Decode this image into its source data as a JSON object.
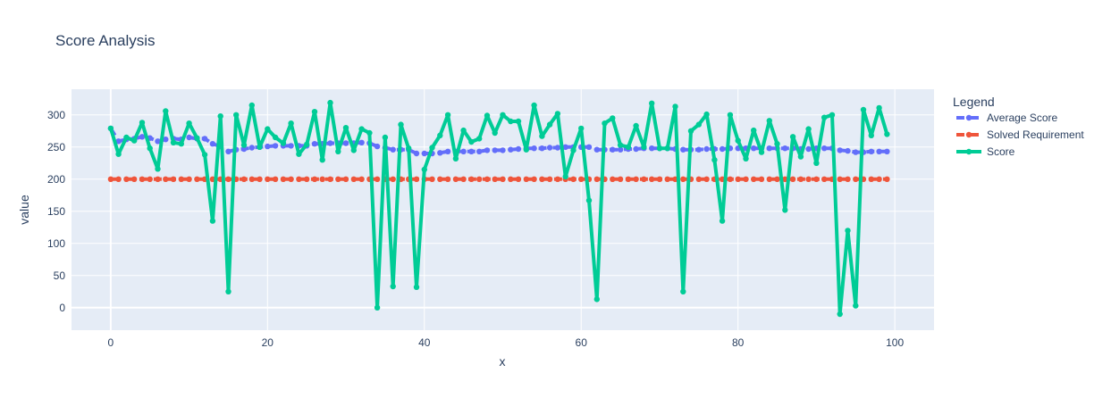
{
  "chart_data": {
    "type": "line",
    "title": "Score Analysis",
    "xlabel": "x",
    "ylabel": "value",
    "xlim": [
      -5,
      105
    ],
    "ylim": [
      -35,
      340
    ],
    "xticks": [
      0,
      20,
      40,
      60,
      80,
      100
    ],
    "yticks": [
      0,
      50,
      100,
      150,
      200,
      250,
      300
    ],
    "grid": true,
    "legend": {
      "title": "Legend",
      "position": "right"
    },
    "x": [
      0,
      1,
      2,
      3,
      4,
      5,
      6,
      7,
      8,
      9,
      10,
      11,
      12,
      13,
      14,
      15,
      16,
      17,
      18,
      19,
      20,
      21,
      22,
      23,
      24,
      25,
      26,
      27,
      28,
      29,
      30,
      31,
      32,
      33,
      34,
      35,
      36,
      37,
      38,
      39,
      40,
      41,
      42,
      43,
      44,
      45,
      46,
      47,
      48,
      49,
      50,
      51,
      52,
      53,
      54,
      55,
      56,
      57,
      58,
      59,
      60,
      61,
      62,
      63,
      64,
      65,
      66,
      67,
      68,
      69,
      70,
      71,
      72,
      73,
      74,
      75,
      76,
      77,
      78,
      79,
      80,
      81,
      82,
      83,
      84,
      85,
      86,
      87,
      88,
      89,
      90,
      91,
      92,
      93,
      94,
      95,
      96,
      97,
      98,
      99
    ],
    "series": [
      {
        "name": "Average Score",
        "color": "#636efa",
        "style": "dash",
        "values": [
          279,
          259,
          262,
          263,
          266,
          264,
          259,
          262,
          263,
          262,
          265,
          263,
          263,
          255,
          251,
          243,
          246,
          247,
          249,
          250,
          251,
          252,
          252,
          252,
          252,
          252,
          255,
          255,
          256,
          256,
          256,
          256,
          257,
          256,
          251,
          249,
          246,
          246,
          246,
          240,
          240,
          240,
          241,
          243,
          243,
          243,
          243,
          243,
          245,
          245,
          245,
          246,
          247,
          248,
          248,
          248,
          249,
          249,
          250,
          250,
          250,
          250,
          246,
          246,
          246,
          246,
          247,
          247,
          248,
          248,
          248,
          248,
          247,
          246,
          246,
          246,
          247,
          247,
          247,
          248,
          248,
          248,
          248,
          248,
          248,
          248,
          248,
          248,
          247,
          247,
          248,
          248,
          248,
          245,
          244,
          242,
          242,
          243,
          243,
          243
        ]
      },
      {
        "name": "Solved Requirement",
        "color": "#ef553b",
        "style": "dash",
        "values": [
          200,
          200,
          200,
          200,
          200,
          200,
          200,
          200,
          200,
          200,
          200,
          200,
          200,
          200,
          200,
          200,
          200,
          200,
          200,
          200,
          200,
          200,
          200,
          200,
          200,
          200,
          200,
          200,
          200,
          200,
          200,
          200,
          200,
          200,
          200,
          200,
          200,
          200,
          200,
          200,
          200,
          200,
          200,
          200,
          200,
          200,
          200,
          200,
          200,
          200,
          200,
          200,
          200,
          200,
          200,
          200,
          200,
          200,
          200,
          200,
          200,
          200,
          200,
          200,
          200,
          200,
          200,
          200,
          200,
          200,
          200,
          200,
          200,
          200,
          200,
          200,
          200,
          200,
          200,
          200,
          200,
          200,
          200,
          200,
          200,
          200,
          200,
          200,
          200,
          200,
          200,
          200,
          200,
          200,
          200,
          200,
          200,
          200,
          200,
          200
        ]
      },
      {
        "name": "Score",
        "color": "#00cc96",
        "style": "solid",
        "values": [
          279,
          239,
          265,
          260,
          288,
          248,
          216,
          306,
          257,
          255,
          287,
          264,
          238,
          135,
          298,
          25,
          300,
          253,
          315,
          250,
          278,
          265,
          256,
          287,
          239,
          254,
          305,
          230,
          319,
          243,
          280,
          245,
          278,
          272,
          0,
          265,
          33,
          285,
          248,
          32,
          215,
          249,
          268,
          300,
          232,
          276,
          258,
          263,
          299,
          272,
          300,
          290,
          290,
          246,
          315,
          267,
          285,
          302,
          204,
          245,
          279,
          167,
          13,
          287,
          295,
          253,
          250,
          283,
          250,
          318,
          248,
          248,
          313,
          25,
          275,
          285,
          301,
          230,
          135,
          300,
          260,
          232,
          276,
          242,
          291,
          255,
          152,
          266,
          235,
          278,
          225,
          296,
          300,
          -10,
          120,
          3,
          308,
          268,
          311,
          270
        ]
      }
    ]
  }
}
